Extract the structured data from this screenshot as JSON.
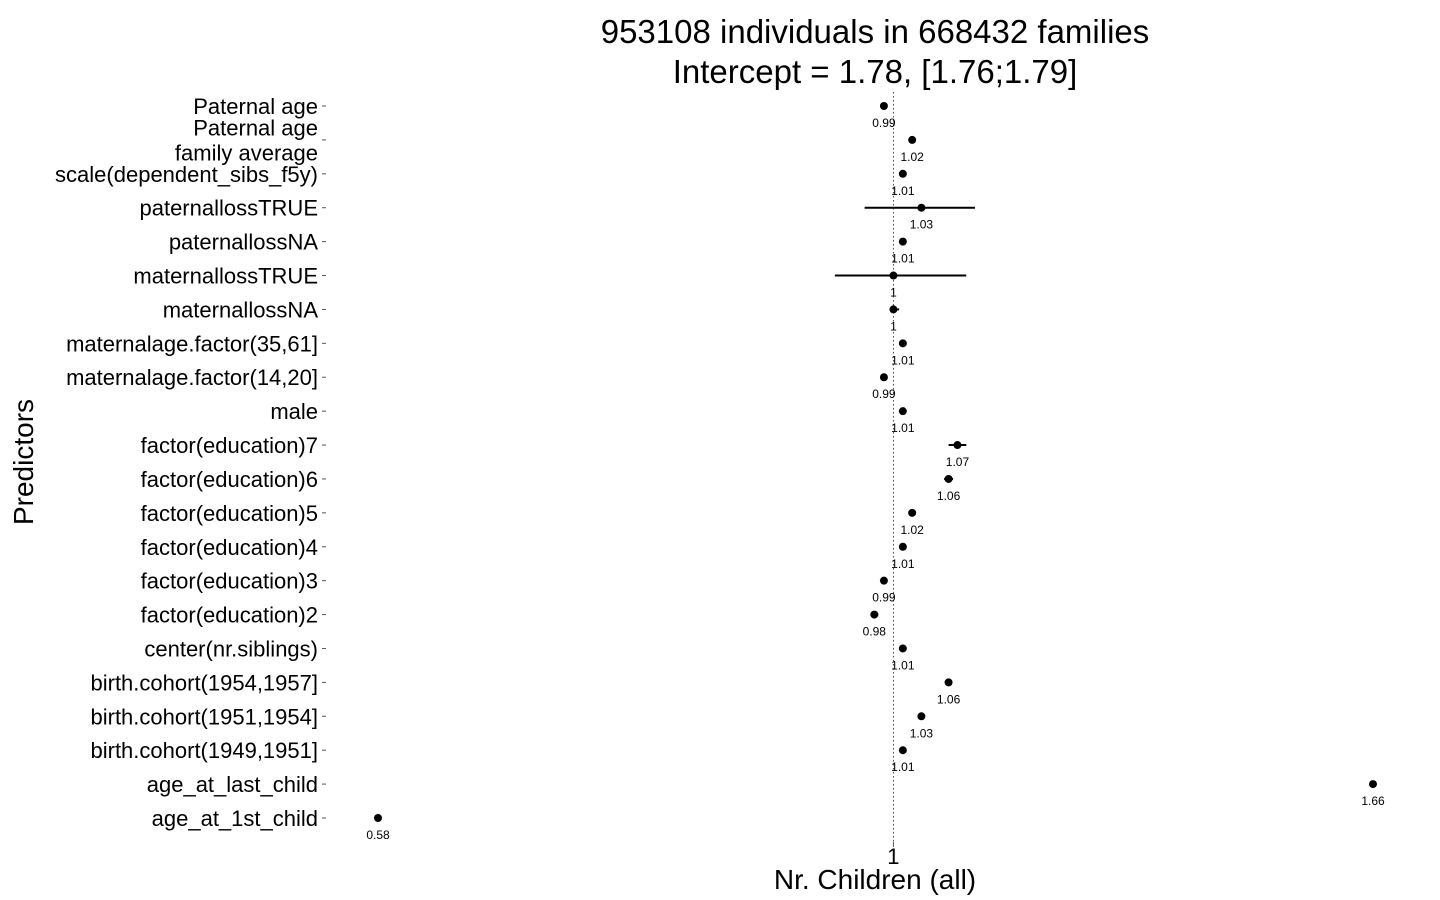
{
  "chart_data": {
    "type": "scatter",
    "title": "953108 individuals in 668432 families",
    "subtitle": "Intercept = 1.78, [1.76;1.79]",
    "xlabel": "Nr. Children (all)",
    "ylabel": "Predictors",
    "x_scale": "log",
    "xlim": [
      0.58,
      1.66
    ],
    "x_ticks": [
      {
        "value": 1,
        "label": "1"
      }
    ],
    "reference_line": 1,
    "grid": false,
    "points": [
      {
        "label": "Paternal age",
        "estimate": 0.99,
        "value_label": "0.99",
        "ci": [
          0.989,
          0.991
        ]
      },
      {
        "label": "Paternal age\nfamily average",
        "estimate": 1.02,
        "value_label": "1.02",
        "ci": [
          1.019,
          1.021
        ]
      },
      {
        "label": "scale(dependent_sibs_f5y)",
        "estimate": 1.01,
        "value_label": "1.01",
        "ci": [
          1.008,
          1.012
        ]
      },
      {
        "label": "paternallossTRUE",
        "estimate": 1.03,
        "value_label": "1.03",
        "ci": [
          0.97,
          1.09
        ]
      },
      {
        "label": "paternallossNA",
        "estimate": 1.01,
        "value_label": "1.01",
        "ci": [
          1.009,
          1.011
        ]
      },
      {
        "label": "maternallossTRUE",
        "estimate": 1.0,
        "value_label": "1",
        "ci": [
          0.94,
          1.08
        ]
      },
      {
        "label": "maternallossNA",
        "estimate": 1.0,
        "value_label": "1",
        "ci": [
          1.004,
          1.006
        ]
      },
      {
        "label": "maternalage.factor(35,61]",
        "estimate": 1.01,
        "value_label": "1.01",
        "ci": [
          1.009,
          1.011
        ]
      },
      {
        "label": "maternalage.factor(14,20]",
        "estimate": 0.99,
        "value_label": "0.99",
        "ci": [
          0.989,
          0.991
        ]
      },
      {
        "label": "male",
        "estimate": 1.01,
        "value_label": "1.01",
        "ci": [
          1.009,
          1.011
        ]
      },
      {
        "label": "factor(education)7",
        "estimate": 1.07,
        "value_label": "1.07",
        "ci": [
          1.06,
          1.08
        ]
      },
      {
        "label": "factor(education)6",
        "estimate": 1.06,
        "value_label": "1.06",
        "ci": [
          1.055,
          1.065
        ]
      },
      {
        "label": "factor(education)5",
        "estimate": 1.02,
        "value_label": "1.02",
        "ci": [
          1.016,
          1.024
        ]
      },
      {
        "label": "factor(education)4",
        "estimate": 1.01,
        "value_label": "1.01",
        "ci": [
          1.006,
          1.014
        ]
      },
      {
        "label": "factor(education)3",
        "estimate": 0.99,
        "value_label": "0.99",
        "ci": [
          0.987,
          0.993
        ]
      },
      {
        "label": "factor(education)2",
        "estimate": 0.98,
        "value_label": "0.98",
        "ci": [
          0.976,
          0.984
        ]
      },
      {
        "label": "center(nr.siblings)",
        "estimate": 1.01,
        "value_label": "1.01",
        "ci": [
          1.009,
          1.011
        ]
      },
      {
        "label": "birth.cohort(1954,1957]",
        "estimate": 1.06,
        "value_label": "1.06",
        "ci": [
          1.059,
          1.061
        ]
      },
      {
        "label": "birth.cohort(1951,1954]",
        "estimate": 1.03,
        "value_label": "1.03",
        "ci": [
          1.029,
          1.031
        ]
      },
      {
        "label": "birth.cohort(1949,1951]",
        "estimate": 1.01,
        "value_label": "1.01",
        "ci": [
          1.009,
          1.011
        ]
      },
      {
        "label": "age_at_last_child",
        "estimate": 1.66,
        "value_label": "1.66",
        "ci": [
          1.659,
          1.661
        ]
      },
      {
        "label": "age_at_1st_child",
        "estimate": 0.58,
        "value_label": "0.58",
        "ci": [
          0.579,
          0.581
        ]
      }
    ]
  }
}
